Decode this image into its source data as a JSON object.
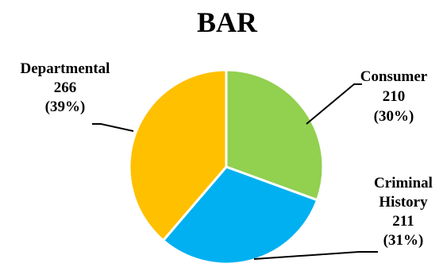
{
  "chart_data": {
    "type": "pie",
    "title": "BAR",
    "slices": [
      {
        "label": "Consumer",
        "value": 210,
        "percent_label": "(30%)",
        "color": "#92D050"
      },
      {
        "label": "Criminal History",
        "label_lines": [
          "Criminal",
          "History"
        ],
        "value": 211,
        "percent_label": "(31%)",
        "color": "#00B0F0"
      },
      {
        "label": "Departmental",
        "value": 266,
        "percent_label": "(39%)",
        "color": "#FFC000"
      }
    ]
  }
}
